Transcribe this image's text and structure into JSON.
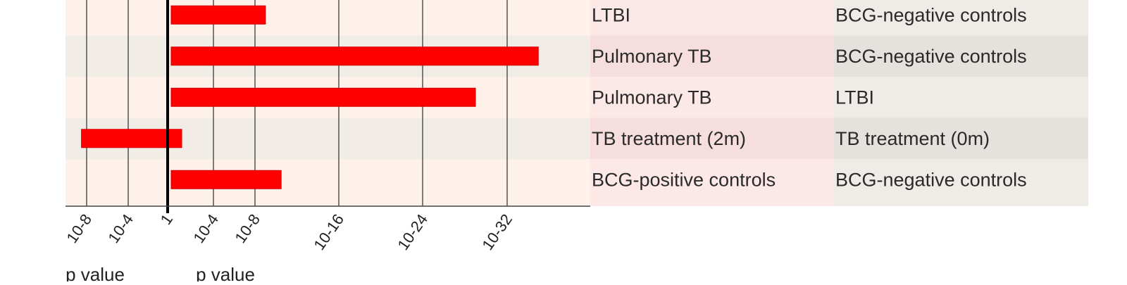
{
  "chart_data": {
    "type": "bar",
    "orientation": "horizontal",
    "x_scale": "log10 p-value, 0 = p of 1; left of 1 = negative direction, right of 1 = positive direction",
    "xlabel_left": "p value",
    "xlabel_right": "p value",
    "x_ticks": [
      {
        "value": -8,
        "label": "10-8"
      },
      {
        "value": -4,
        "label": "10-4"
      },
      {
        "value": 0,
        "label": "1"
      },
      {
        "value": 4,
        "label": "10-4"
      },
      {
        "value": 8,
        "label": "10-8"
      },
      {
        "value": 16,
        "label": "10-16"
      },
      {
        "value": 24,
        "label": "10-24"
      },
      {
        "value": 32,
        "label": "10-32"
      }
    ],
    "xlim": [
      -10,
      40
    ],
    "grid": true,
    "rows": [
      {
        "group": "LTBI",
        "reference": "BCG-negative controls",
        "value": 9
      },
      {
        "group": "Pulmonary TB",
        "reference": "BCG-negative controls",
        "value": 35
      },
      {
        "group": "Pulmonary TB",
        "reference": "LTBI",
        "value": 29
      },
      {
        "group": "TB treatment (2m)",
        "reference": "TB treatment (0m)",
        "value": -8.5
      },
      {
        "group": "BCG-positive controls",
        "reference": "BCG-negative controls",
        "value": 10.5
      }
    ],
    "colors": {
      "bar": "#ff0000",
      "band_light": "#fdf1ea",
      "band_dark": "#f1ede6",
      "group_col_light": "#fde8e8",
      "group_col_dark": "#f6dede",
      "ref_col_light": "#efebe7",
      "ref_col_dark": "#e5e1dd",
      "axis": "#000000"
    }
  }
}
